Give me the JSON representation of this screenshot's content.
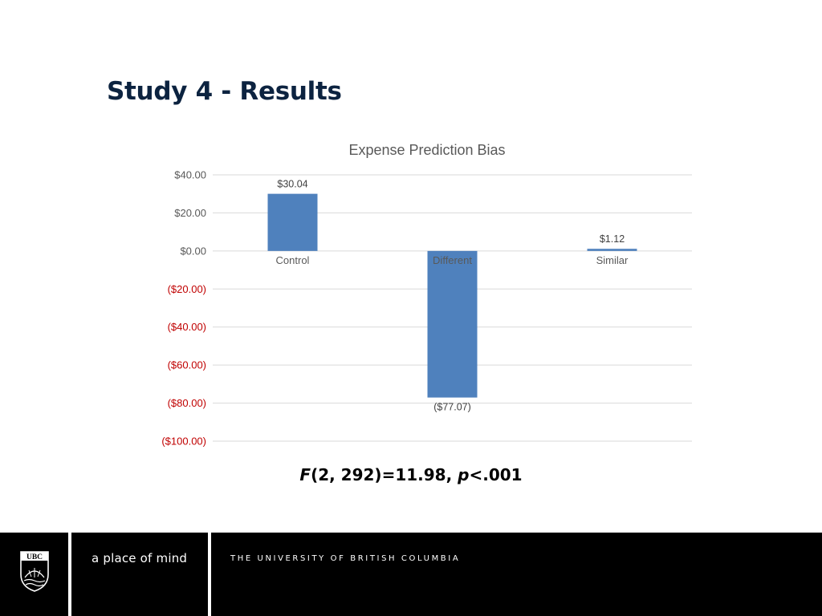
{
  "slide": {
    "title": "Study 4 - Results"
  },
  "stats": {
    "f_symbol": "F",
    "f_args": "(2, 292)=11.98, ",
    "p_symbol": "p",
    "p_value": "<.001"
  },
  "footer": {
    "logo_text": "UBC",
    "tagline": "a place of mind",
    "university": "THE UNIVERSITY OF BRITISH COLUMBIA"
  },
  "colors": {
    "bar": "#4f81bd",
    "negative_tick": "#c00000",
    "positive_tick": "#595959",
    "grid": "#d9d9d9",
    "title": "#0c2340"
  },
  "chart_data": {
    "type": "bar",
    "title": "Expense Prediction Bias",
    "categories": [
      "Control",
      "Different",
      "Similar"
    ],
    "values": [
      30.04,
      -77.07,
      1.12
    ],
    "data_labels": [
      "$30.04",
      "($77.07)",
      "$1.12"
    ],
    "ylim": [
      -100,
      40
    ],
    "yticks": [
      40,
      20,
      0,
      -20,
      -40,
      -60,
      -80,
      -100
    ],
    "ytick_labels": [
      "$40.00",
      "$20.00",
      "$0.00",
      "($20.00)",
      "($40.00)",
      "($60.00)",
      "($80.00)",
      "($100.00)"
    ],
    "grid": true,
    "legend": "none",
    "xlabel": "",
    "ylabel": ""
  }
}
